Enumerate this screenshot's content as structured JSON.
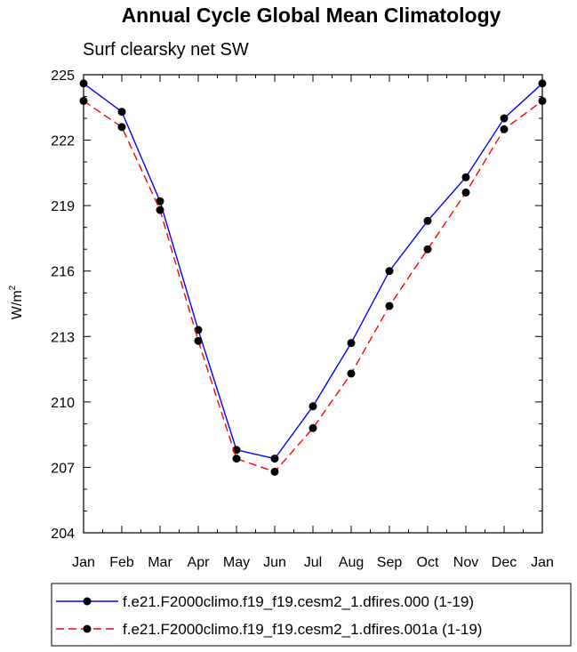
{
  "chart_data": {
    "type": "line",
    "title": "Annual Cycle Global Mean Climatology",
    "subtitle": "Surf clearsky net SW",
    "ylabel": "W/m",
    "ylabel_sup": "2",
    "ylim": [
      204,
      225
    ],
    "yticks": [
      "204",
      "207",
      "210",
      "213",
      "216",
      "219",
      "222",
      "225"
    ],
    "categories": [
      "Jan",
      "Feb",
      "Mar",
      "Apr",
      "May",
      "Jun",
      "Jul",
      "Aug",
      "Sep",
      "Oct",
      "Nov",
      "Dec",
      "Jan"
    ],
    "grid": false,
    "legend_position": "bottom",
    "series": [
      {
        "name": "f.e21.F2000climo.f19_f19.cesm2_1.dfires.000 (1-19)",
        "color": "#0000ff",
        "dash": "solid",
        "values": [
          224.6,
          223.3,
          219.2,
          213.3,
          207.8,
          207.4,
          209.8,
          212.7,
          216.0,
          218.3,
          220.3,
          223.0,
          224.6
        ]
      },
      {
        "name": "f.e21.F2000climo.f19_f19.cesm2_1.dfires.001a (1-19)",
        "color": "#ff0000",
        "dash": "dashed",
        "values": [
          223.8,
          222.6,
          218.8,
          212.8,
          207.4,
          206.8,
          208.8,
          211.3,
          214.4,
          217.0,
          219.6,
          222.5,
          223.8
        ]
      }
    ]
  }
}
